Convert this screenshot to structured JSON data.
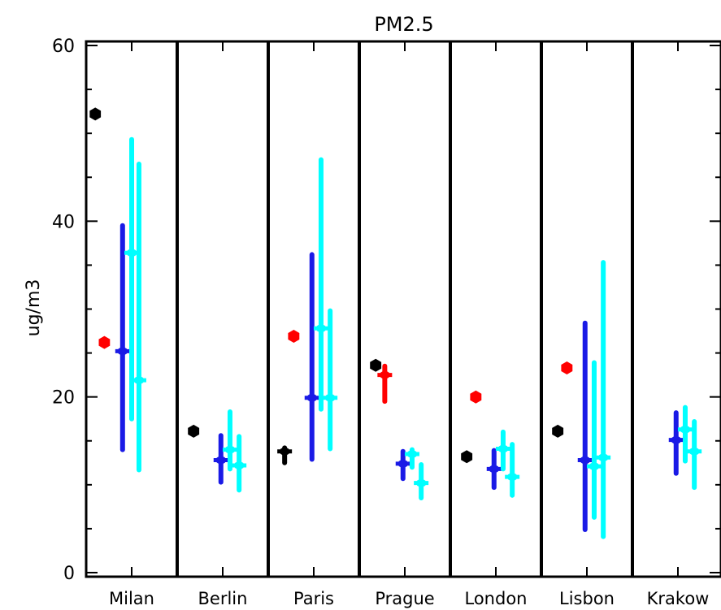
{
  "chart_data": {
    "type": "scatter",
    "title": "PM2.5",
    "xlabel": "",
    "ylabel": "ug/m3",
    "ylim": [
      0,
      60
    ],
    "yticks": [
      0,
      20,
      40,
      60
    ],
    "grid": false,
    "colors": {
      "black": "#000000",
      "red": "#ff0000",
      "blue": "#1a1ae6",
      "cyan": "#00ffff"
    },
    "categories": [
      "Milan",
      "Berlin",
      "Paris",
      "Prague",
      "London",
      "Lisbon",
      "Krakow"
    ],
    "groups": [
      {
        "label": "Milan",
        "points": [
          {
            "color": "black",
            "offset": 0.1,
            "value": 52.2
          },
          {
            "color": "red",
            "offset": 0.2,
            "value": 26.2
          },
          {
            "color": "blue",
            "offset": 0.4,
            "value": 25.2,
            "low": 14.0,
            "high": 39.5
          },
          {
            "color": "cyan",
            "offset": 0.5,
            "value": 36.4,
            "low": 17.5,
            "high": 49.3
          },
          {
            "color": "cyan",
            "offset": 0.58,
            "value": 21.9,
            "low": 11.7,
            "high": 46.5
          }
        ]
      },
      {
        "label": "Berlin",
        "points": [
          {
            "color": "black",
            "offset": 0.18,
            "value": 16.1
          },
          {
            "color": "blue",
            "offset": 0.48,
            "value": 12.8,
            "low": 10.3,
            "high": 15.6
          },
          {
            "color": "cyan",
            "offset": 0.58,
            "value": 14.0,
            "low": 11.8,
            "high": 18.3
          },
          {
            "color": "cyan",
            "offset": 0.68,
            "value": 12.2,
            "low": 9.4,
            "high": 15.5
          }
        ]
      },
      {
        "label": "Paris",
        "points": [
          {
            "color": "black",
            "offset": 0.18,
            "value": 13.8,
            "low": 12.5,
            "high": 14.2
          },
          {
            "color": "red",
            "offset": 0.28,
            "value": 26.9
          },
          {
            "color": "blue",
            "offset": 0.48,
            "value": 19.9,
            "low": 12.9,
            "high": 36.2
          },
          {
            "color": "cyan",
            "offset": 0.58,
            "value": 27.8,
            "low": 18.6,
            "high": 47.0
          },
          {
            "color": "cyan",
            "offset": 0.68,
            "value": 19.9,
            "low": 14.1,
            "high": 29.8
          }
        ]
      },
      {
        "label": "Prague",
        "points": [
          {
            "color": "black",
            "offset": 0.18,
            "value": 23.6
          },
          {
            "color": "red",
            "offset": 0.28,
            "value": 22.5,
            "low": 19.5,
            "high": 23.5
          },
          {
            "color": "blue",
            "offset": 0.48,
            "value": 12.4,
            "low": 10.7,
            "high": 13.8
          },
          {
            "color": "cyan",
            "offset": 0.58,
            "value": 13.5,
            "low": 12.0,
            "high": 14.0
          },
          {
            "color": "cyan",
            "offset": 0.68,
            "value": 10.2,
            "low": 8.5,
            "high": 12.3
          }
        ]
      },
      {
        "label": "London",
        "points": [
          {
            "color": "black",
            "offset": 0.18,
            "value": 13.2
          },
          {
            "color": "red",
            "offset": 0.28,
            "value": 20.0
          },
          {
            "color": "blue",
            "offset": 0.48,
            "value": 11.8,
            "low": 9.7,
            "high": 13.9
          },
          {
            "color": "cyan",
            "offset": 0.58,
            "value": 14.1,
            "low": 11.8,
            "high": 16.0
          },
          {
            "color": "cyan",
            "offset": 0.68,
            "value": 10.9,
            "low": 8.8,
            "high": 14.6
          }
        ]
      },
      {
        "label": "Lisbon",
        "points": [
          {
            "color": "black",
            "offset": 0.18,
            "value": 16.1
          },
          {
            "color": "red",
            "offset": 0.28,
            "value": 23.3
          },
          {
            "color": "blue",
            "offset": 0.48,
            "value": 12.8,
            "low": 4.9,
            "high": 28.4
          },
          {
            "color": "cyan",
            "offset": 0.58,
            "value": 12.1,
            "low": 6.3,
            "high": 23.9
          },
          {
            "color": "cyan",
            "offset": 0.68,
            "value": 13.1,
            "low": 4.1,
            "high": 35.3
          }
        ]
      },
      {
        "label": "Krakow",
        "points": [
          {
            "color": "blue",
            "offset": 0.48,
            "value": 15.1,
            "low": 11.3,
            "high": 18.2
          },
          {
            "color": "cyan",
            "offset": 0.58,
            "value": 16.3,
            "low": 12.7,
            "high": 18.8
          },
          {
            "color": "cyan",
            "offset": 0.68,
            "value": 13.8,
            "low": 9.7,
            "high": 17.2
          }
        ]
      }
    ]
  }
}
